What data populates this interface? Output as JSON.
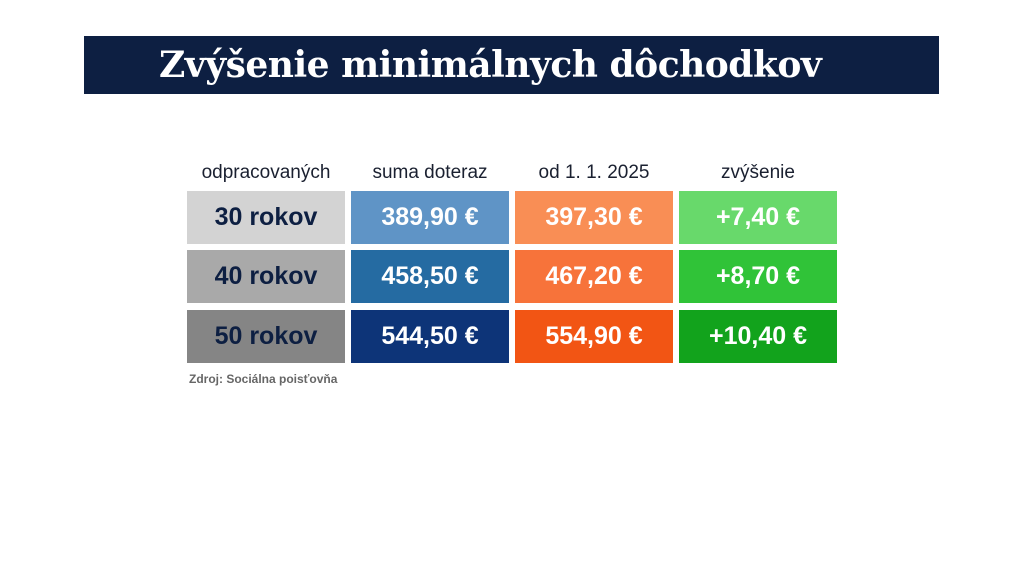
{
  "title": "Zvýšenie minimálnych dôchodkov",
  "source": "Zdroj: Sociálna poisťovňa",
  "chart_data": {
    "type": "table",
    "columns": [
      "odpracovaných",
      "suma doteraz",
      "od 1. 1. 2025",
      "zvýšenie"
    ],
    "rows": [
      [
        "30 rokov",
        "389,90 €",
        "397,30 €",
        "+7,40 €"
      ],
      [
        "40 rokov",
        "458,50 €",
        "467,20 €",
        "+8,70 €"
      ],
      [
        "50 rokov",
        "544,50 €",
        "554,90 €",
        "+10,40 €"
      ]
    ],
    "values": {
      "suma_doteraz": [
        389.9,
        458.5,
        544.5
      ],
      "od_2025": [
        397.3,
        467.2,
        554.9
      ],
      "zvysenie": [
        7.4,
        8.7,
        10.4
      ]
    },
    "unit": "€"
  },
  "colors": {
    "title_bg": "#0d1f42",
    "col0": [
      "#d3d3d3",
      "#a9a9a9",
      "#858585"
    ],
    "col1": [
      "#5f94c6",
      "#256ba2",
      "#0d3478"
    ],
    "col2": [
      "#f98e55",
      "#f7733a",
      "#f25514"
    ],
    "col3": [
      "#68d96b",
      "#30c338",
      "#12a31c"
    ]
  }
}
